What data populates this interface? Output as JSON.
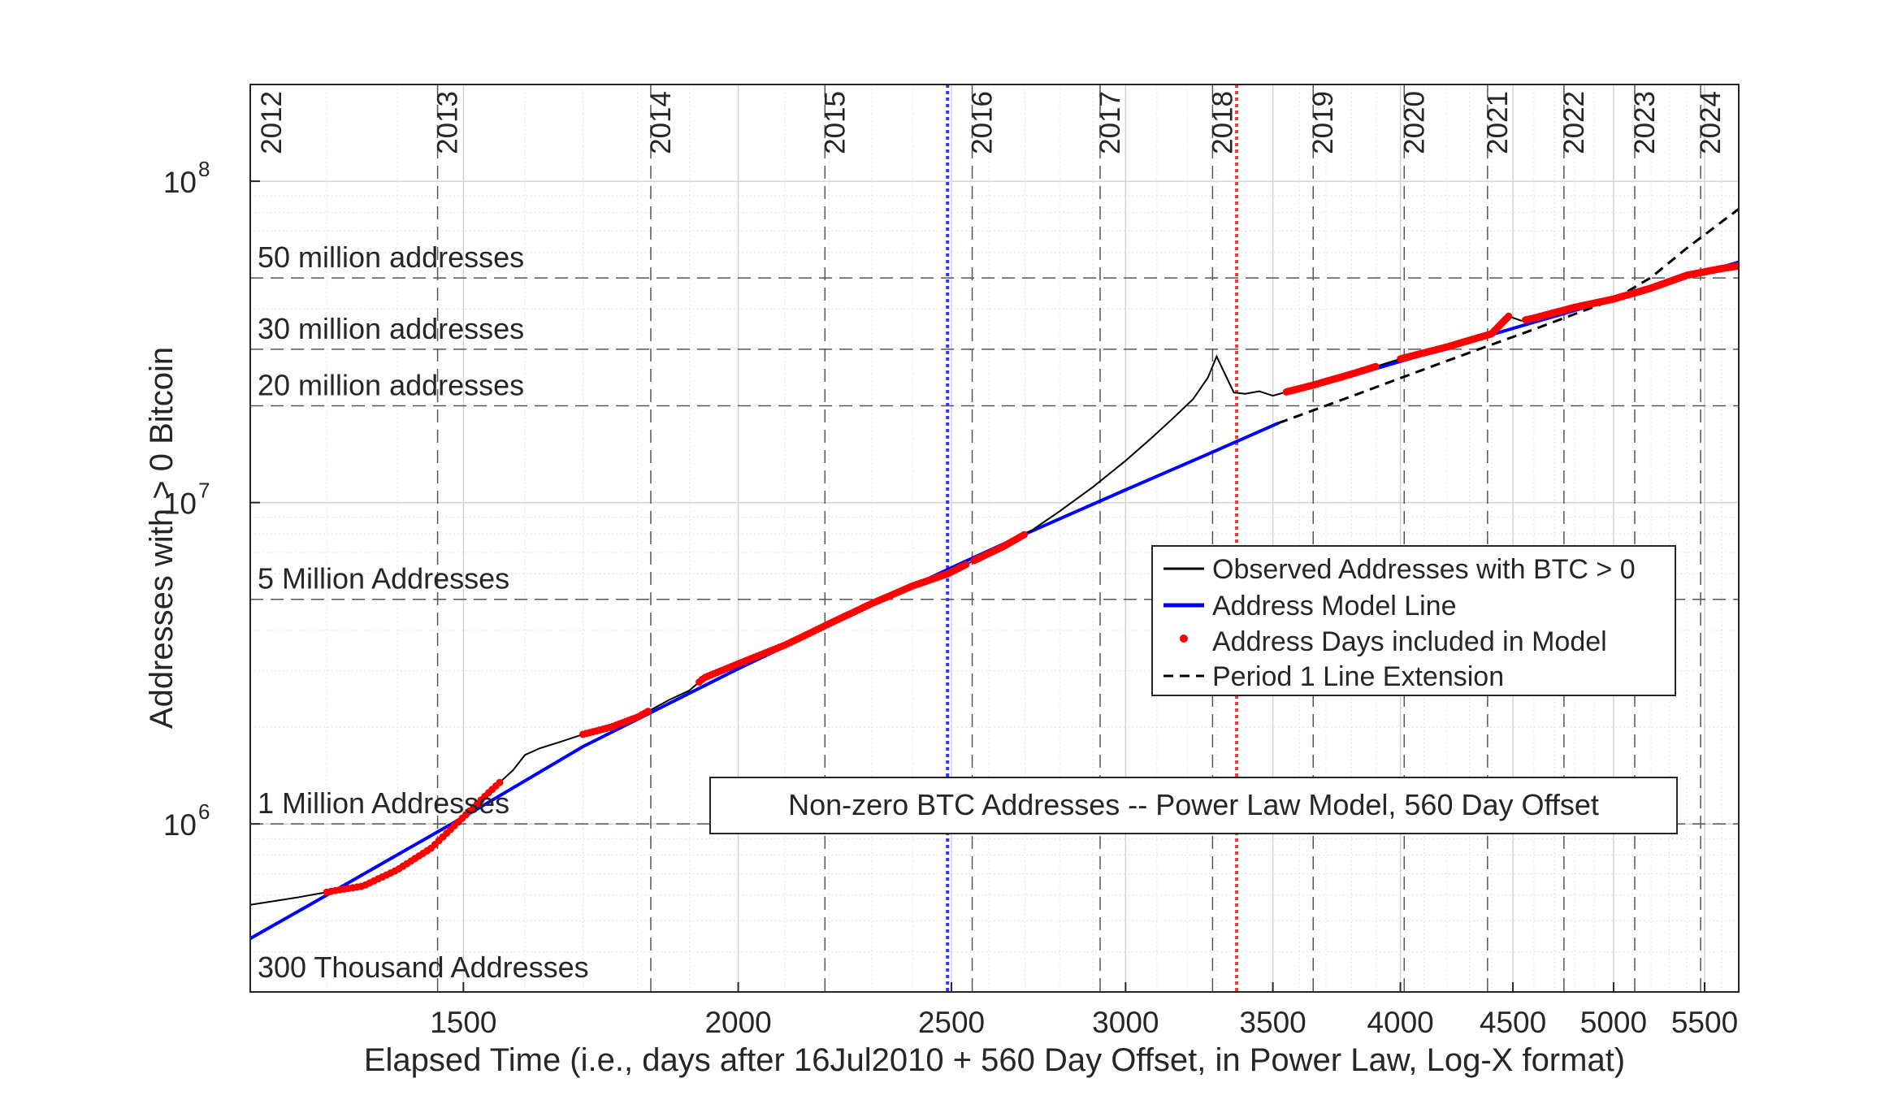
{
  "chart_data": {
    "type": "line",
    "title": "",
    "xlabel": "Elapsed Time (i.e., days after 16Jul2010 + 560 Day Offset, in Power Law, Log-X format)",
    "ylabel": "Addresses with > 0 Bitcoin",
    "x_scale": "log",
    "y_scale": "log",
    "xlim": [
      1200,
      5700
    ],
    "ylim": [
      300000,
      200000000
    ],
    "grid": true,
    "legend_position": "center-right",
    "x_ticks": [
      {
        "value": 1500,
        "label": "1500"
      },
      {
        "value": 2000,
        "label": "2000"
      },
      {
        "value": 2500,
        "label": "2500"
      },
      {
        "value": 3000,
        "label": "3000"
      },
      {
        "value": 3500,
        "label": "3500"
      },
      {
        "value": 4000,
        "label": "4000"
      },
      {
        "value": 4500,
        "label": "4500"
      },
      {
        "value": 5000,
        "label": "5000"
      },
      {
        "value": 5500,
        "label": "5500"
      }
    ],
    "y_ticks": [
      {
        "value": 1000000,
        "base": "10",
        "exp": "6"
      },
      {
        "value": 10000000,
        "base": "10",
        "exp": "7"
      },
      {
        "value": 100000000,
        "base": "10",
        "exp": "8"
      }
    ],
    "year_markers": [
      {
        "label": "2012",
        "x": 1094
      },
      {
        "label": "2013",
        "x": 1460
      },
      {
        "label": "2014",
        "x": 1825
      },
      {
        "label": "2015",
        "x": 2190
      },
      {
        "label": "2016",
        "x": 2555
      },
      {
        "label": "2017",
        "x": 2921
      },
      {
        "label": "2018",
        "x": 3286
      },
      {
        "label": "2019",
        "x": 3651
      },
      {
        "label": "2020",
        "x": 4016
      },
      {
        "label": "2021",
        "x": 4382
      },
      {
        "label": "2022",
        "x": 4747
      },
      {
        "label": "2023",
        "x": 5112
      },
      {
        "label": "2024",
        "x": 5477
      }
    ],
    "reference_lines": [
      {
        "label": "50 million addresses",
        "value": 50000000
      },
      {
        "label": "30 million addresses",
        "value": 30000000
      },
      {
        "label": "20 million addresses",
        "value": 20000000
      },
      {
        "label": "5 Million Addresses",
        "value": 5000000
      },
      {
        "label": "1 Million Addresses",
        "value": 1000000
      },
      {
        "label": "300 Thousand Addresses",
        "value": 300000
      }
    ],
    "vertical_markers": [
      {
        "x": 2490,
        "color": "#3333ff"
      },
      {
        "x": 3370,
        "color": "#ff3333"
      }
    ],
    "series": [
      {
        "name": "Observed Addresses with BTC > 0",
        "color": "#000000",
        "style": "solid",
        "points": [
          [
            1200,
            560000
          ],
          [
            1260,
            590000
          ],
          [
            1320,
            625000
          ],
          [
            1350,
            640000
          ],
          [
            1400,
            720000
          ],
          [
            1450,
            840000
          ],
          [
            1500,
            1050000
          ],
          [
            1540,
            1250000
          ],
          [
            1580,
            1470000
          ],
          [
            1600,
            1640000
          ],
          [
            1625,
            1720000
          ],
          [
            1660,
            1800000
          ],
          [
            1700,
            1900000
          ],
          [
            1750,
            2000000
          ],
          [
            1800,
            2150000
          ],
          [
            1860,
            2430000
          ],
          [
            1900,
            2600000
          ],
          [
            1930,
            2850000
          ],
          [
            2000,
            3150000
          ],
          [
            2100,
            3600000
          ],
          [
            2200,
            4200000
          ],
          [
            2300,
            4850000
          ],
          [
            2400,
            5500000
          ],
          [
            2490,
            6000000
          ],
          [
            2560,
            6600000
          ],
          [
            2640,
            7300000
          ],
          [
            2720,
            8200000
          ],
          [
            2800,
            9400000
          ],
          [
            2900,
            11200000
          ],
          [
            3000,
            13500000
          ],
          [
            3080,
            15800000
          ],
          [
            3150,
            18200000
          ],
          [
            3220,
            21000000
          ],
          [
            3270,
            24500000
          ],
          [
            3300,
            28500000
          ],
          [
            3330,
            25000000
          ],
          [
            3360,
            22000000
          ],
          [
            3400,
            21800000
          ],
          [
            3450,
            22200000
          ],
          [
            3500,
            21500000
          ],
          [
            3550,
            22100000
          ],
          [
            3650,
            23200000
          ],
          [
            3800,
            25100000
          ],
          [
            4000,
            28000000
          ],
          [
            4200,
            30500000
          ],
          [
            4400,
            33500000
          ],
          [
            4480,
            38000000
          ],
          [
            4540,
            36800000
          ],
          [
            4600,
            37500000
          ],
          [
            4800,
            40500000
          ],
          [
            5000,
            43000000
          ],
          [
            5200,
            46500000
          ],
          [
            5400,
            51000000
          ],
          [
            5600,
            53500000
          ],
          [
            5700,
            54500000
          ]
        ]
      },
      {
        "name": "Address Model Line",
        "color": "#0000ff",
        "style": "solid",
        "segments": [
          [
            [
              1200,
              440000
            ],
            [
              1300,
              600000
            ],
            [
              1500,
              1050000
            ],
            [
              1700,
              1740000
            ],
            [
              2000,
              3040000
            ],
            [
              2300,
              4800000
            ],
            [
              2500,
              6270000
            ],
            [
              2700,
              7980000
            ],
            [
              3000,
              10950000
            ],
            [
              3300,
              14540000
            ],
            [
              3520,
              17670000
            ]
          ],
          [
            [
              3550,
              22100000
            ],
            [
              3800,
              24800000
            ],
            [
              4000,
              27500000
            ],
            [
              4200,
              30300000
            ],
            [
              4400,
              33300000
            ],
            [
              4600,
              36400000
            ],
            [
              4800,
              39600000
            ],
            [
              5000,
              43000000
            ],
            [
              5200,
              46600000
            ],
            [
              5400,
              50300000
            ],
            [
              5700,
              56000000
            ]
          ]
        ]
      },
      {
        "name": "Address Days included in Model",
        "color": "#ff0000",
        "style": "dots",
        "ranges": [
          [
            1300,
            1560
          ],
          [
            1700,
            1820
          ],
          [
            1920,
            2540
          ],
          [
            2560,
            2700
          ],
          [
            3550,
            3900
          ],
          [
            4000,
            4480
          ],
          [
            4560,
            5700
          ]
        ]
      },
      {
        "name": "Period 1 Line Extension",
        "color": "#000000",
        "style": "dashed",
        "points": [
          [
            3520,
            17670000
          ],
          [
            3800,
            21400000
          ],
          [
            4000,
            24400000
          ],
          [
            4200,
            27600000
          ],
          [
            4400,
            31000000
          ],
          [
            4600,
            34600000
          ],
          [
            4800,
            38600000
          ],
          [
            5000,
            42800000
          ],
          [
            5200,
            50200000
          ],
          [
            5400,
            62000000
          ],
          [
            5700,
            82000000
          ]
        ]
      }
    ],
    "annotation": "Non-zero BTC Addresses -- Power Law Model, 560 Day Offset"
  },
  "colors": {
    "model": "#0000ff",
    "included": "#ff0000",
    "observed": "#000000",
    "extension": "#000000"
  }
}
